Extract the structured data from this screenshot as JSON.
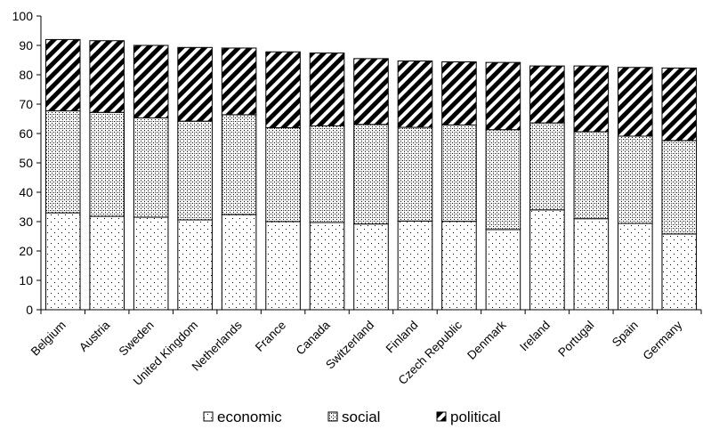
{
  "chart_data": {
    "type": "bar",
    "stacked": true,
    "categories": [
      "Belgium",
      "Austria",
      "Sweden",
      "United Kingdom",
      "Netherlands",
      "France",
      "Canada",
      "Switzerland",
      "Finland",
      "Czech Republic",
      "Denmark",
      "Ireland",
      "Portugal",
      "Spain",
      "Germany"
    ],
    "series": [
      {
        "name": "economic",
        "pattern": "dots",
        "values": [
          33.0,
          31.8,
          31.5,
          30.6,
          32.4,
          30.0,
          29.7,
          29.2,
          30.2,
          30.1,
          27.3,
          34.0,
          31.0,
          29.4,
          25.8
        ]
      },
      {
        "name": "social",
        "pattern": "dense-dots",
        "values": [
          34.7,
          35.4,
          33.8,
          33.6,
          34.0,
          32.0,
          32.9,
          33.9,
          31.9,
          32.8,
          34.0,
          29.6,
          29.6,
          29.7,
          31.8
        ]
      },
      {
        "name": "political",
        "pattern": "diagonal-hatch",
        "values": [
          24.3,
          24.4,
          24.7,
          25.1,
          22.7,
          25.8,
          24.8,
          22.4,
          22.6,
          21.5,
          22.9,
          19.4,
          22.4,
          23.4,
          24.7
        ]
      }
    ],
    "ylim": [
      0,
      100
    ],
    "yticks": [
      "0",
      "10",
      "20",
      "30",
      "40",
      "50",
      "60",
      "70",
      "80",
      "90",
      "100"
    ],
    "grid": false,
    "legend": "bottom",
    "colors": {
      "bar_fill": "#ffffff",
      "stroke": "#000000"
    }
  }
}
